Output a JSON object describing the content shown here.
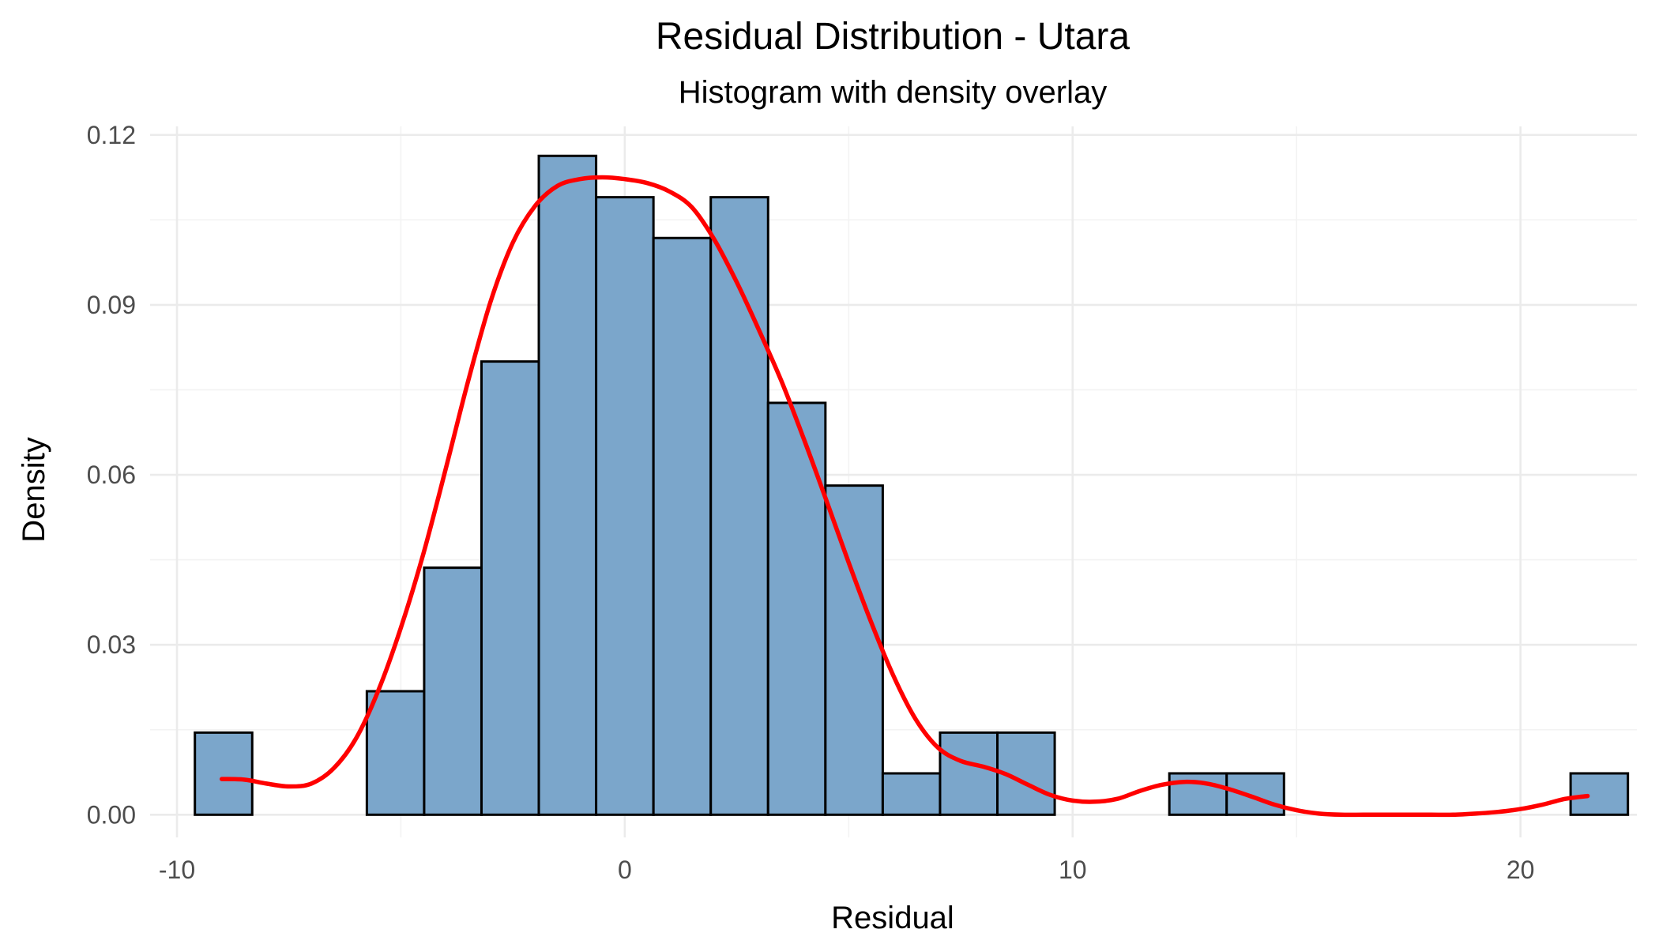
{
  "chart_data": {
    "type": "bar",
    "title": "Residual Distribution - Utara",
    "subtitle": "Histogram with density overlay",
    "xlabel": "Residual",
    "ylabel": "Density",
    "xlim": [
      -10.6,
      22.6
    ],
    "ylim": [
      -0.004,
      0.1215
    ],
    "x_ticks": [
      -10,
      0,
      10,
      20
    ],
    "x_tick_labels": [
      "-10",
      "0",
      "10",
      "20"
    ],
    "y_ticks": [
      0,
      0.03,
      0.06,
      0.09,
      0.12
    ],
    "y_tick_labels": [
      "0.00",
      "0.03",
      "0.06",
      "0.09",
      "0.12"
    ],
    "grid": true,
    "legend": "none",
    "bins": {
      "starts": [
        -9.6,
        -8.32,
        -7.04,
        -5.76,
        -4.48,
        -3.2,
        -1.92,
        -0.64,
        0.64,
        1.92,
        3.2,
        4.48,
        5.76,
        7.04,
        8.32,
        9.6,
        10.88,
        12.16,
        13.44,
        14.72,
        16.0,
        17.28,
        18.56,
        19.84,
        21.12
      ],
      "width": 1.28,
      "density": [
        0.0145,
        0.0,
        0.0,
        0.0218,
        0.0436,
        0.08,
        0.1163,
        0.109,
        0.1018,
        0.109,
        0.0727,
        0.0581,
        0.0073,
        0.0145,
        0.0145,
        0.0,
        0.0,
        0.0073,
        0.0073,
        0.0,
        0.0,
        0.0,
        0.0,
        0.0,
        0.0073
      ]
    },
    "density_curve": {
      "x": [
        -9.0,
        -8.5,
        -8.0,
        -7.5,
        -7.0,
        -6.5,
        -6.0,
        -5.5,
        -5.0,
        -4.5,
        -4.0,
        -3.5,
        -3.0,
        -2.5,
        -2.0,
        -1.5,
        -1.0,
        -0.5,
        0.0,
        0.5,
        1.0,
        1.5,
        2.0,
        2.5,
        3.0,
        3.5,
        4.0,
        4.5,
        5.0,
        5.5,
        6.0,
        6.5,
        7.0,
        7.5,
        8.0,
        8.5,
        9.0,
        9.5,
        10.0,
        10.5,
        11.0,
        11.5,
        12.0,
        12.5,
        13.0,
        13.5,
        14.0,
        14.5,
        15.0,
        15.5,
        16.0,
        16.5,
        17.0,
        17.5,
        18.0,
        18.5,
        19.0,
        19.5,
        20.0,
        20.5,
        21.0,
        21.5
      ],
      "y": [
        0.0063,
        0.0062,
        0.0055,
        0.005,
        0.0055,
        0.0082,
        0.0135,
        0.022,
        0.033,
        0.046,
        0.061,
        0.0765,
        0.0905,
        0.101,
        0.1075,
        0.111,
        0.1122,
        0.1125,
        0.1122,
        0.1115,
        0.11,
        0.1072,
        0.1015,
        0.094,
        0.0855,
        0.0765,
        0.0663,
        0.0555,
        0.0445,
        0.034,
        0.0245,
        0.0168,
        0.0118,
        0.0095,
        0.0085,
        0.0072,
        0.0053,
        0.0035,
        0.0025,
        0.0023,
        0.0028,
        0.0042,
        0.0053,
        0.0058,
        0.0055,
        0.0045,
        0.0032,
        0.0018,
        0.0008,
        0.0002,
        0.0,
        0.0,
        0.0,
        0.0,
        0.0,
        0.0,
        0.0002,
        0.0005,
        0.001,
        0.0018,
        0.0028,
        0.0033
      ]
    }
  },
  "colors": {
    "bar_fill": "#7ba6cb",
    "bar_stroke": "#000000",
    "density_line": "#ff0000",
    "grid": "#ebebeb",
    "background": "#ffffff"
  }
}
